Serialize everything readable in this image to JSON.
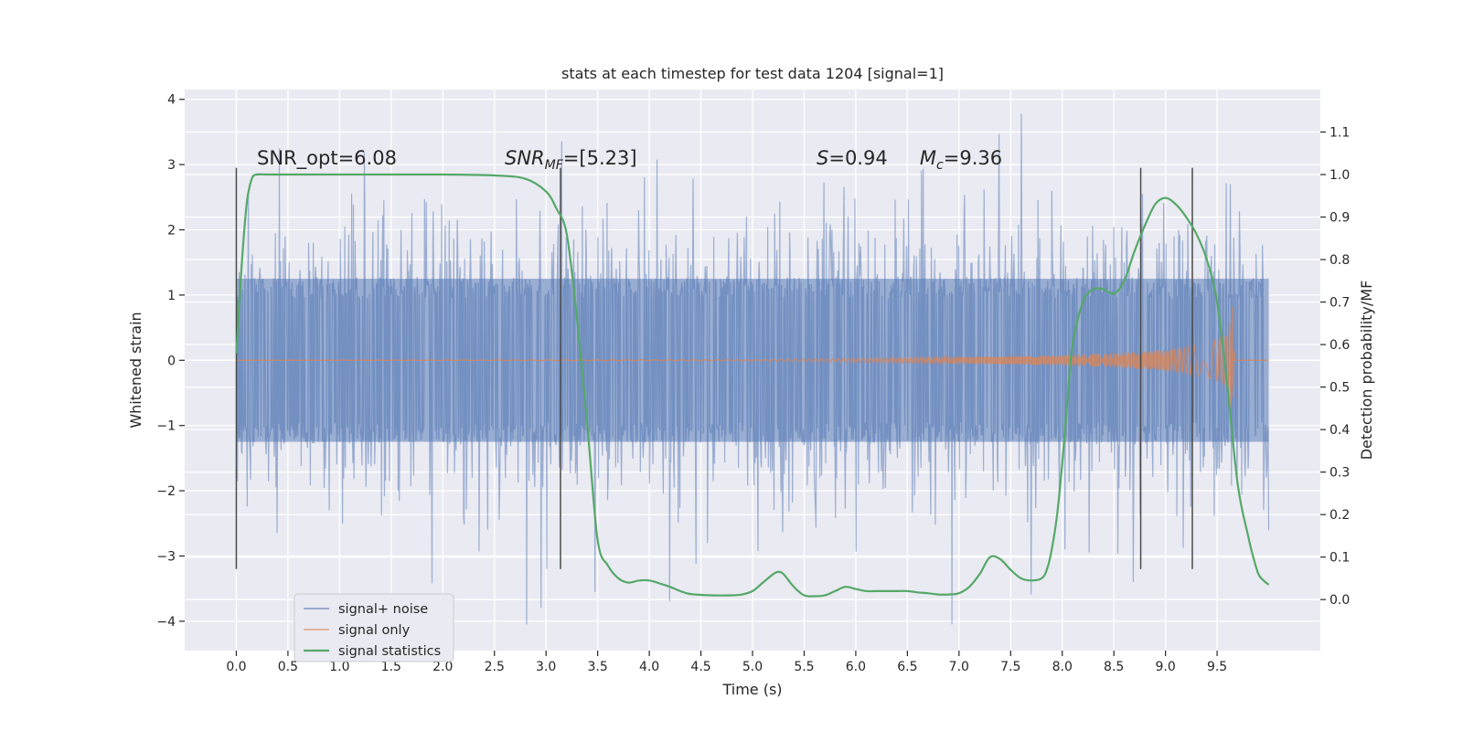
{
  "chart_data": {
    "type": "line",
    "title": "stats at each timestep for test data 1204 [signal=1]",
    "xlabel": "Time (s)",
    "ylabel": "Whitened strain",
    "y2label": "Detection probability/MF",
    "xlim": [
      -0.5,
      10.5
    ],
    "ylim": [
      -4.45,
      4.15
    ],
    "y2lim": [
      -0.12,
      1.2
    ],
    "xticks": [
      0.0,
      0.5,
      1.0,
      1.5,
      2.0,
      2.5,
      3.0,
      3.5,
      4.0,
      4.5,
      5.0,
      5.5,
      6.0,
      6.5,
      7.0,
      7.5,
      8.0,
      8.5,
      9.0,
      9.5
    ],
    "xtick_labels": [
      "0.0",
      "0.5",
      "1.0",
      "1.5",
      "2.0",
      "2.5",
      "3.0",
      "3.5",
      "4.0",
      "4.5",
      "5.0",
      "5.5",
      "6.0",
      "6.5",
      "7.0",
      "7.5",
      "8.0",
      "8.5",
      "9.0",
      "9.5"
    ],
    "yticks": [
      -4,
      -3,
      -2,
      -1,
      0,
      1,
      2,
      3,
      4
    ],
    "ytick_labels": [
      "−4",
      "−3",
      "−2",
      "−1",
      "0",
      "1",
      "2",
      "3",
      "4"
    ],
    "y2ticks": [
      0.0,
      0.1,
      0.2,
      0.3,
      0.4,
      0.5,
      0.6,
      0.7,
      0.8,
      0.9,
      1.0,
      1.1
    ],
    "y2tick_labels": [
      "0.0",
      "0.1",
      "0.2",
      "0.3",
      "0.4",
      "0.5",
      "0.6",
      "0.7",
      "0.8",
      "0.9",
      "1.0",
      "1.1"
    ],
    "grid": true,
    "legend_position": "lower-left",
    "annotations": {
      "snr_opt": {
        "text": "SNR_opt=6.08",
        "x": 0.2,
        "y": 3.0
      },
      "snr_mf": {
        "base": "SNR",
        "sub": "MF",
        "rest": "=[5.23]",
        "x": 2.6,
        "y": 3.0
      },
      "s": {
        "base": "S",
        "rest": "=0.94",
        "x": 5.62,
        "y": 3.0
      },
      "mc": {
        "base": "M",
        "sub": "c",
        "rest": "=9.36",
        "x": 6.62,
        "y": 3.0
      }
    },
    "vertical_lines": {
      "x": [
        0.0,
        3.14,
        8.76,
        9.26
      ],
      "y_range": [
        -3.2,
        2.95
      ],
      "color": "#4a4a4a"
    },
    "series": [
      {
        "name": "signal+ noise",
        "axis": "left",
        "color": "#4c72b0",
        "x_range": [
          0.0,
          10.0
        ],
        "samples": 1800,
        "core_amplitude": 1.25,
        "peak_amplitude": 3.75,
        "min": -4.05,
        "max": 3.78
      },
      {
        "name": "signal only",
        "axis": "left",
        "color": "#dd8452",
        "description_points": {
          "t": [
            0.0,
            5.0,
            6.0,
            7.0,
            8.0,
            8.5,
            9.0,
            9.4,
            9.6,
            9.65,
            9.67,
            10.0
          ],
          "amplitude": [
            0.0,
            0.01,
            0.03,
            0.05,
            0.08,
            0.11,
            0.16,
            0.26,
            0.4,
            0.88,
            0.0,
            0.0
          ]
        }
      },
      {
        "name": "signal statistics",
        "axis": "right",
        "color": "#55a868",
        "x": [
          0.0,
          0.05,
          0.1,
          0.15,
          0.2,
          0.3,
          0.5,
          1.0,
          1.5,
          2.0,
          2.5,
          2.8,
          3.0,
          3.1,
          3.2,
          3.3,
          3.4,
          3.5,
          3.6,
          3.7,
          3.8,
          3.9,
          4.0,
          4.1,
          4.2,
          4.3,
          4.4,
          4.6,
          4.8,
          4.9,
          5.0,
          5.1,
          5.2,
          5.25,
          5.3,
          5.4,
          5.5,
          5.6,
          5.7,
          5.8,
          5.9,
          6.0,
          6.1,
          6.2,
          6.3,
          6.4,
          6.5,
          6.6,
          6.7,
          6.8,
          6.9,
          7.0,
          7.1,
          7.2,
          7.3,
          7.4,
          7.5,
          7.6,
          7.7,
          7.8,
          7.85,
          7.9,
          7.95,
          8.0,
          8.05,
          8.1,
          8.2,
          8.3,
          8.4,
          8.5,
          8.6,
          8.7,
          8.8,
          8.9,
          9.0,
          9.1,
          9.2,
          9.3,
          9.4,
          9.5,
          9.6,
          9.7,
          9.8,
          9.85,
          9.9,
          9.95,
          10.0
        ],
        "y": [
          0.58,
          0.78,
          0.93,
          0.99,
          1.0,
          1.0,
          1.0,
          1.0,
          1.0,
          1.0,
          0.998,
          0.99,
          0.96,
          0.92,
          0.86,
          0.66,
          0.41,
          0.14,
          0.08,
          0.05,
          0.04,
          0.045,
          0.045,
          0.038,
          0.03,
          0.02,
          0.013,
          0.01,
          0.01,
          0.012,
          0.02,
          0.04,
          0.06,
          0.065,
          0.06,
          0.03,
          0.01,
          0.008,
          0.01,
          0.02,
          0.03,
          0.025,
          0.02,
          0.02,
          0.02,
          0.02,
          0.02,
          0.017,
          0.015,
          0.012,
          0.012,
          0.015,
          0.03,
          0.06,
          0.1,
          0.095,
          0.07,
          0.05,
          0.045,
          0.05,
          0.07,
          0.12,
          0.2,
          0.32,
          0.47,
          0.6,
          0.7,
          0.73,
          0.73,
          0.72,
          0.75,
          0.82,
          0.88,
          0.93,
          0.945,
          0.93,
          0.9,
          0.86,
          0.8,
          0.7,
          0.5,
          0.27,
          0.15,
          0.1,
          0.06,
          0.045,
          0.035
        ]
      }
    ]
  }
}
